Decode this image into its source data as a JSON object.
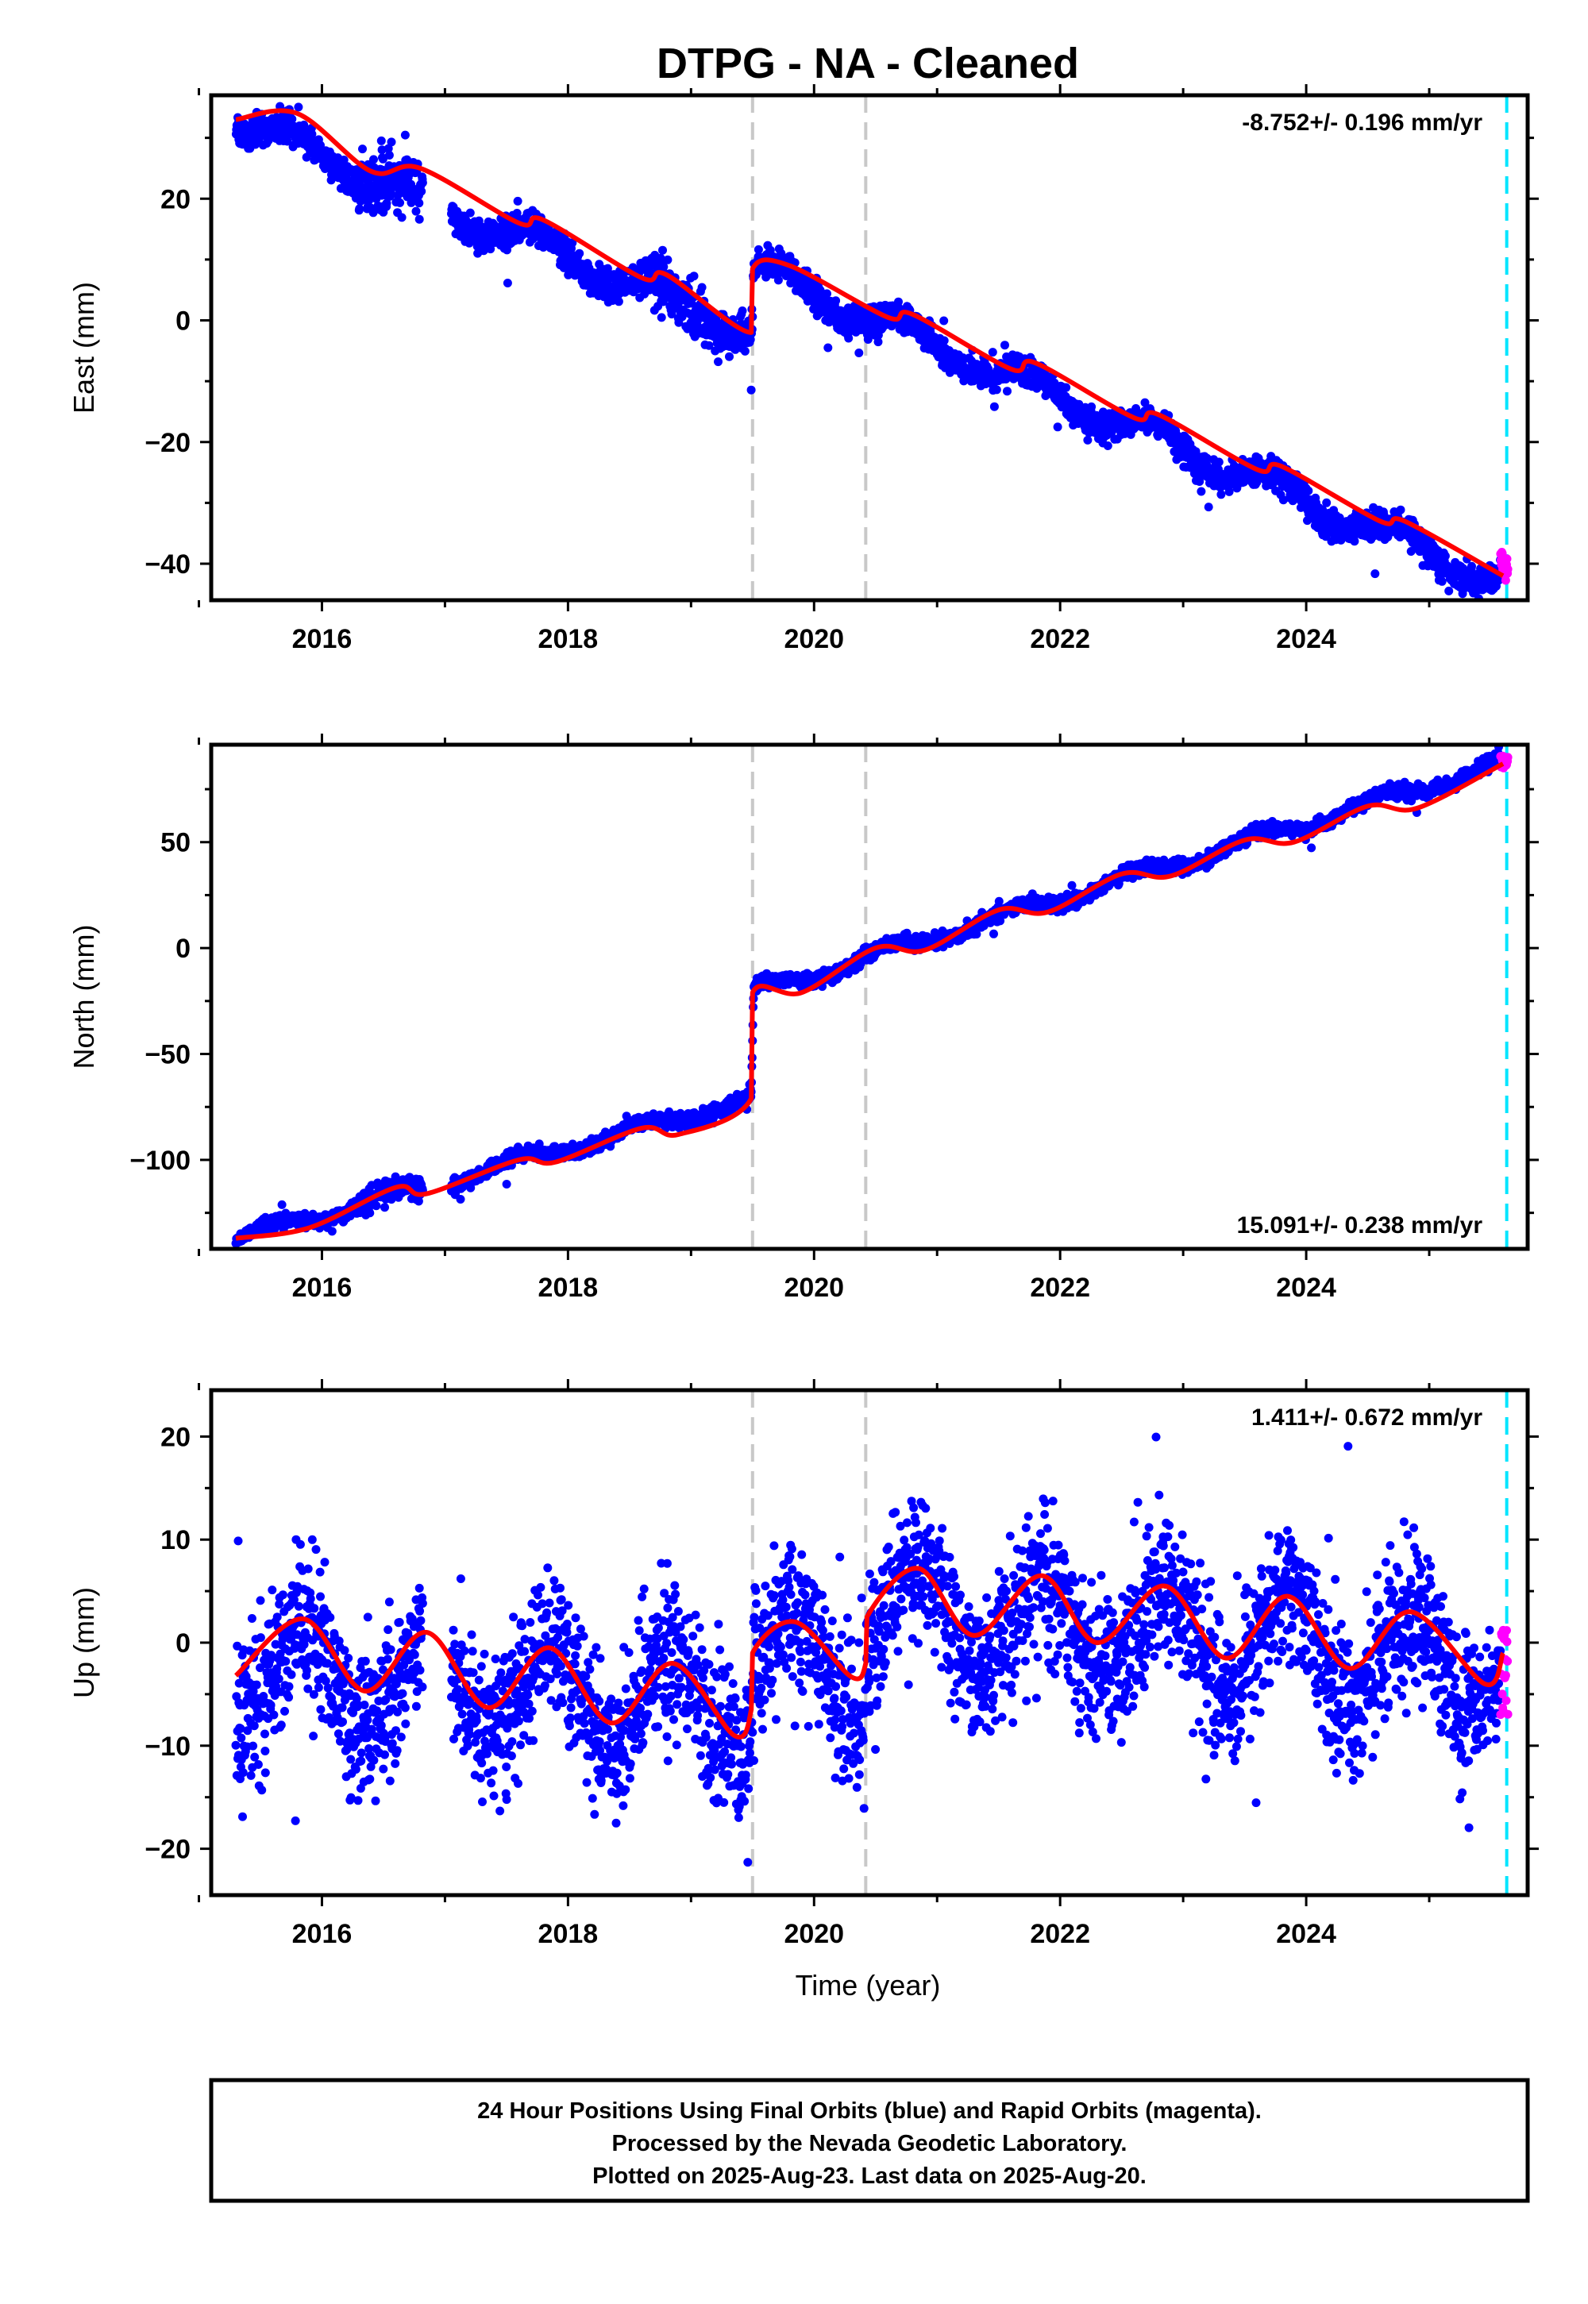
{
  "colors": {
    "final_orbits": "#0000ff",
    "rapid_orbits": "#ff00ff",
    "model_fit": "#ff0000",
    "equipment_change_lines": "#c8c8c8",
    "last_data_line": "#00e5ff"
  },
  "chart_data": {
    "title": "DTPG  - NA - Cleaned",
    "xlabel": "Time (year)",
    "xlim": [
      2015.1,
      2025.8
    ],
    "xticks": [
      2016,
      2018,
      2020,
      2022,
      2024
    ],
    "equipment_change_lines_year": [
      2019.5,
      2020.42
    ],
    "last_data_line_year": 2025.63,
    "panels": [
      {
        "name": "East",
        "type": "scatter",
        "ylabel": "East (mm)",
        "ylim": [
          -46,
          37
        ],
        "yticks": [
          20,
          0,
          -20,
          -40
        ],
        "rate_label": "-8.752+/- 0.196 mm/yr",
        "rate_position": "top-right",
        "rate_mm_per_yr": -8.752,
        "series": [
          {
            "name": "24 Hour Positions (Final Orbits)",
            "color": "blue",
            "data_range": [
              2015.3,
              2025.58
            ],
            "gap": [
              2016.82,
              2017.05
            ],
            "trend_knots": [
              [
                2015.3,
                33
              ],
              [
                2019.49,
                -2
              ],
              [
                2019.51,
                8.5
              ],
              [
                2025.58,
                -43
              ]
            ],
            "annual_amplitude_mm": 2.3,
            "annual_phase_peak_year_fraction": 0.75,
            "scatter_mm": 1.2
          },
          {
            "name": "24 Hour Positions (Rapid Orbits)",
            "color": "magenta",
            "data_range": [
              2025.58,
              2025.64
            ],
            "y_range": [
              -43,
              -38
            ]
          }
        ],
        "model_line": {
          "name": "Model fit",
          "color": "red",
          "points": [
            [
              2015.3,
              33
            ],
            [
              2015.8,
              34
            ],
            [
              2016.4,
              24.5
            ],
            [
              2016.8,
              25
            ],
            [
              2017.6,
              16
            ],
            [
              2017.8,
              16.5
            ],
            [
              2018.6,
              7
            ],
            [
              2018.8,
              7.5
            ],
            [
              2019.49,
              -2
            ],
            [
              2019.5,
              8.5
            ],
            [
              2019.8,
              9
            ],
            [
              2020.6,
              0.5
            ],
            [
              2020.8,
              1
            ],
            [
              2021.6,
              -8
            ],
            [
              2021.8,
              -7
            ],
            [
              2022.6,
              -16
            ],
            [
              2022.8,
              -15.5
            ],
            [
              2023.6,
              -24.5
            ],
            [
              2023.8,
              -24
            ],
            [
              2024.6,
              -33
            ],
            [
              2024.8,
              -33
            ],
            [
              2025.6,
              -42
            ]
          ]
        }
      },
      {
        "name": "North",
        "type": "scatter",
        "ylabel": "North (mm)",
        "ylim": [
          -142,
          96
        ],
        "yticks": [
          50,
          0,
          -50,
          -100
        ],
        "rate_label": "15.091+/- 0.238 mm/yr",
        "rate_position": "bottom-right",
        "rate_mm_per_yr": 15.091,
        "series": [
          {
            "name": "24 Hour Positions (Final Orbits)",
            "color": "blue",
            "data_range": [
              2015.3,
              2025.58
            ],
            "gap": [
              2016.82,
              2017.05
            ],
            "trend_knots": [
              [
                2015.3,
                -137
              ],
              [
                2019.49,
                -71
              ],
              [
                2019.51,
                -21
              ],
              [
                2025.58,
                87
              ]
            ],
            "annual_amplitude_mm": 3.0,
            "annual_phase_peak_year_fraction": 0.6,
            "scatter_mm": 1.6
          },
          {
            "name": "24 Hour Positions (Rapid Orbits)",
            "color": "magenta",
            "data_range": [
              2025.58,
              2025.64
            ],
            "y_range": [
              85,
              91
            ]
          }
        ],
        "model_line": {
          "name": "Model fit",
          "color": "red",
          "points": [
            [
              2015.3,
              -137
            ],
            [
              2015.9,
              -132
            ],
            [
              2016.6,
              -113
            ],
            [
              2016.85,
              -116
            ],
            [
              2017.6,
              -100
            ],
            [
              2017.9,
              -101
            ],
            [
              2018.6,
              -85
            ],
            [
              2018.9,
              -88
            ],
            [
              2019.49,
              -71
            ],
            [
              2019.5,
              -21
            ],
            [
              2019.9,
              -21
            ],
            [
              2020.5,
              0
            ],
            [
              2020.9,
              -1
            ],
            [
              2021.5,
              18
            ],
            [
              2021.9,
              17
            ],
            [
              2022.5,
              35
            ],
            [
              2022.9,
              34
            ],
            [
              2023.5,
              51
            ],
            [
              2023.9,
              50
            ],
            [
              2024.5,
              67
            ],
            [
              2024.9,
              66
            ],
            [
              2025.6,
              87
            ]
          ]
        }
      },
      {
        "name": "Up",
        "type": "scatter",
        "ylabel": "Up (mm)",
        "ylim": [
          -24.5,
          24.5
        ],
        "yticks": [
          20,
          10,
          0,
          -10,
          -20
        ],
        "rate_label": "1.411+/- 0.672 mm/yr",
        "rate_position": "top-right",
        "rate_mm_per_yr": 1.411,
        "series": [
          {
            "name": "24 Hour Positions (Final Orbits)",
            "color": "blue",
            "data_range": [
              2015.3,
              2025.58
            ],
            "gap": [
              2016.82,
              2017.05
            ],
            "trend_knots": [
              [
                2015.3,
                -3
              ],
              [
                2019.49,
                -6
              ],
              [
                2019.51,
                -1
              ],
              [
                2020.42,
                -3
              ],
              [
                2020.43,
                3
              ],
              [
                2025.58,
                -2
              ]
            ],
            "annual_amplitude_mm": 4.5,
            "annual_phase_peak_year_fraction": 0.85,
            "scatter_mm": 3.6
          },
          {
            "name": "24 Hour Positions (Rapid Orbits)",
            "color": "magenta",
            "data_range": [
              2025.58,
              2025.64
            ],
            "y_range": [
              -7,
              2
            ]
          }
        ],
        "model_line": {
          "name": "Model fit",
          "color": "red",
          "points": [
            [
              2015.3,
              -3.2
            ],
            [
              2015.85,
              2.3
            ],
            [
              2016.35,
              -4.7
            ],
            [
              2016.85,
              1
            ],
            [
              2017.35,
              -6.3
            ],
            [
              2017.85,
              -0.5
            ],
            [
              2018.35,
              -7.8
            ],
            [
              2018.85,
              -2
            ],
            [
              2019.35,
              -9
            ],
            [
              2019.49,
              -6.5
            ],
            [
              2019.5,
              -1
            ],
            [
              2019.85,
              2
            ],
            [
              2020.3,
              -3.3
            ],
            [
              2020.42,
              -2
            ],
            [
              2020.43,
              2.5
            ],
            [
              2020.85,
              7.2
            ],
            [
              2021.3,
              0.7
            ],
            [
              2021.85,
              6.5
            ],
            [
              2022.3,
              0
            ],
            [
              2022.85,
              5.5
            ],
            [
              2023.35,
              -1.5
            ],
            [
              2023.85,
              4.5
            ],
            [
              2024.35,
              -2.5
            ],
            [
              2024.85,
              3
            ],
            [
              2025.45,
              -4
            ],
            [
              2025.6,
              -1
            ]
          ]
        }
      }
    ],
    "footer": [
      "24 Hour Positions Using Final Orbits (blue) and Rapid Orbits (magenta).",
      "Processed by the Nevada Geodetic Laboratory.",
      "Plotted on 2025-Aug-23. Last data on 2025-Aug-20."
    ]
  }
}
